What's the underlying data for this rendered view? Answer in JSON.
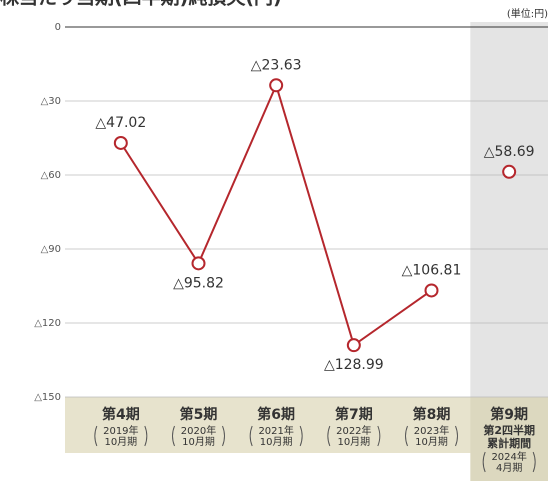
{
  "chart_data": {
    "type": "line",
    "title": "株当たり当期(四半期)純損失(円)",
    "unit": "(単位:円)",
    "categories": [
      "第4期",
      "第5期",
      "第6期",
      "第7期",
      "第8期",
      "第9期"
    ],
    "periods": [
      [
        "2019年",
        "10月期"
      ],
      [
        "2020年",
        "10月期"
      ],
      [
        "2021年",
        "10月期"
      ],
      [
        "2022年",
        "10月期"
      ],
      [
        "2023年",
        "10月期"
      ],
      [
        "2024年",
        "4月期"
      ]
    ],
    "current_period_label": [
      "第2四半期",
      "累計期間"
    ],
    "values": [
      -47.02,
      -95.82,
      -23.63,
      -128.99,
      -106.81,
      -58.69
    ],
    "value_labels": [
      "△47.02",
      "△95.82",
      "△23.63",
      "△128.99",
      "△106.81",
      "△58.69"
    ],
    "label_positions": [
      "above",
      "below",
      "above",
      "below",
      "above",
      "above"
    ],
    "color": "#b5272d",
    "highlight_last": true,
    "ylim": [
      -150,
      0
    ],
    "yticks": [
      {
        "value": 0,
        "label": "0"
      },
      {
        "value": -30,
        "label": "△30"
      },
      {
        "value": -60,
        "label": "△60"
      },
      {
        "value": -90,
        "label": "△90"
      },
      {
        "value": -120,
        "label": "△120"
      },
      {
        "value": -150,
        "label": "△150"
      }
    ],
    "grid": true
  }
}
